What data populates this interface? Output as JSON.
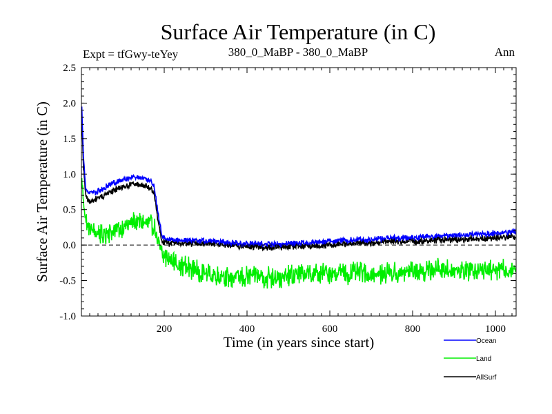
{
  "chart_data": {
    "type": "line",
    "title": "Surface Air Temperature (in C)",
    "subtitle_left": "Expt = tfGwy-teYey",
    "subtitle_center": "380_0_MaBP - 380_0_MaBP",
    "subtitle_right": "Ann",
    "xlabel": "Time (in years since start)",
    "ylabel": "Surface Air Temperature (in C)",
    "xlim": [
      0,
      1050
    ],
    "ylim": [
      -1.0,
      2.5
    ],
    "x_ticks": [
      200,
      400,
      600,
      800,
      1000
    ],
    "y_ticks": [
      -1.0,
      -0.5,
      0.0,
      0.5,
      1.0,
      1.5,
      2.0,
      2.5
    ],
    "x_tick_labels": [
      "200",
      "400",
      "600",
      "800",
      "1000"
    ],
    "y_tick_labels": [
      "-1.0",
      "-0.5",
      "0.0",
      "0.5",
      "1.0",
      "1.5",
      "2.0",
      "2.5"
    ],
    "reference_line": {
      "y": 0.0,
      "style": "dashed"
    },
    "series": [
      {
        "name": "Land",
        "color": "#00ee00",
        "x": [
          0,
          5,
          10,
          20,
          40,
          60,
          80,
          100,
          120,
          140,
          160,
          175,
          185,
          195,
          210,
          250,
          300,
          350,
          400,
          450,
          500,
          550,
          600,
          650,
          700,
          750,
          800,
          850,
          900,
          950,
          1000,
          1050
        ],
        "values": [
          0.95,
          0.6,
          0.35,
          0.2,
          0.15,
          0.15,
          0.2,
          0.25,
          0.3,
          0.35,
          0.3,
          0.25,
          0.05,
          -0.15,
          -0.2,
          -0.3,
          -0.4,
          -0.45,
          -0.45,
          -0.45,
          -0.45,
          -0.4,
          -0.4,
          -0.4,
          -0.4,
          -0.4,
          -0.35,
          -0.35,
          -0.35,
          -0.35,
          -0.35,
          -0.35
        ],
        "noise": 0.18
      },
      {
        "name": "AllSurf",
        "color": "#000000",
        "x": [
          0,
          5,
          10,
          20,
          40,
          60,
          80,
          100,
          120,
          140,
          160,
          175,
          185,
          195,
          210,
          250,
          300,
          350,
          400,
          450,
          500,
          550,
          600,
          650,
          700,
          750,
          800,
          850,
          900,
          950,
          1000,
          1050
        ],
        "values": [
          1.9,
          1.1,
          0.7,
          0.6,
          0.65,
          0.72,
          0.78,
          0.82,
          0.85,
          0.86,
          0.82,
          0.75,
          0.35,
          0.05,
          0.03,
          0.03,
          0.02,
          0.0,
          -0.02,
          -0.03,
          -0.02,
          -0.01,
          0.0,
          0.02,
          0.03,
          0.05,
          0.06,
          0.07,
          0.08,
          0.09,
          0.1,
          0.12
        ],
        "noise": 0.06
      },
      {
        "name": "Ocean",
        "color": "#0000ff",
        "x": [
          0,
          5,
          10,
          20,
          40,
          60,
          80,
          100,
          120,
          140,
          160,
          175,
          185,
          195,
          210,
          250,
          300,
          350,
          400,
          450,
          500,
          550,
          600,
          650,
          700,
          750,
          800,
          850,
          900,
          950,
          1000,
          1050
        ],
        "values": [
          2.1,
          1.25,
          0.8,
          0.72,
          0.75,
          0.82,
          0.88,
          0.92,
          0.95,
          0.96,
          0.92,
          0.85,
          0.45,
          0.1,
          0.08,
          0.07,
          0.06,
          0.04,
          0.02,
          0.01,
          0.02,
          0.04,
          0.05,
          0.07,
          0.08,
          0.1,
          0.11,
          0.12,
          0.14,
          0.15,
          0.17,
          0.19
        ],
        "noise": 0.05
      }
    ],
    "legend": {
      "position": "bottom-right",
      "entries": [
        {
          "name": "Ocean",
          "color": "#0000ff"
        },
        {
          "name": "Land",
          "color": "#00ee00"
        },
        {
          "name": "AllSurf",
          "color": "#000000"
        }
      ]
    }
  }
}
